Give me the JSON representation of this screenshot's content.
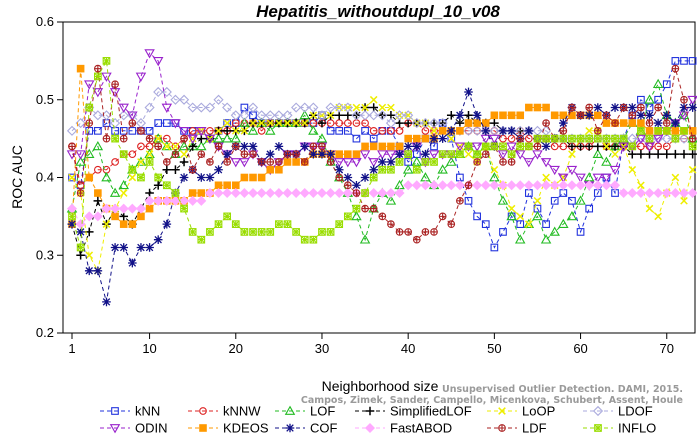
{
  "chart_data": {
    "type": "line",
    "title": "Hepatitis_withoutdupl_10_v08",
    "xlabel": "Neighborhood size",
    "ylabel": "ROC AUC",
    "xlim": [
      1,
      73
    ],
    "ylim": [
      0.2,
      0.6
    ],
    "xticks": [
      1,
      10,
      20,
      30,
      40,
      50,
      60,
      70
    ],
    "yticks": [
      0.2,
      0.3,
      0.4,
      0.5,
      0.6
    ],
    "grid": false,
    "legend_position": "bottom",
    "credit": [
      "Campos, Zimek, Sander, Campello, Micenkova, Schubert, Assent, Houle",
      "Unsupervised Outlier Detection. DAMI, 2015."
    ],
    "series": [
      {
        "name": "kNN",
        "color": "#2233dd",
        "marker": "square",
        "values": [
          0.4,
          0.39,
          0.46,
          0.46,
          0.47,
          0.46,
          0.46,
          0.46,
          0.46,
          0.46,
          0.47,
          0.47,
          0.47,
          0.46,
          0.46,
          0.46,
          0.45,
          0.46,
          0.47,
          0.47,
          0.49,
          0.48,
          0.47,
          0.47,
          0.47,
          0.47,
          0.47,
          0.47,
          0.47,
          0.48,
          0.46,
          0.46,
          0.46,
          0.45,
          0.46,
          0.45,
          0.46,
          0.46,
          0.44,
          0.42,
          0.43,
          0.45,
          0.44,
          0.47,
          0.45,
          0.4,
          0.37,
          0.35,
          0.34,
          0.31,
          0.33,
          0.35,
          0.34,
          0.38,
          0.36,
          0.34,
          0.37,
          0.38,
          0.37,
          0.33,
          0.36,
          0.38,
          0.4,
          0.38,
          0.45,
          0.48,
          0.5,
          0.49,
          0.5,
          0.52,
          0.55,
          0.55,
          0.55
        ]
      },
      {
        "name": "kNNW",
        "color": "#dd2222",
        "marker": "circle",
        "values": [
          0.44,
          0.39,
          0.4,
          0.41,
          0.41,
          0.42,
          0.43,
          0.43,
          0.44,
          0.44,
          0.45,
          0.45,
          0.44,
          0.45,
          0.46,
          0.46,
          0.46,
          0.46,
          0.46,
          0.47,
          0.47,
          0.47,
          0.46,
          0.47,
          0.47,
          0.47,
          0.47,
          0.47,
          0.47,
          0.47,
          0.47,
          0.47,
          0.47,
          0.47,
          0.47,
          0.46,
          0.46,
          0.46,
          0.46,
          0.47,
          0.47,
          0.46,
          0.46,
          0.46,
          0.46,
          0.46,
          0.46,
          0.46,
          0.46,
          0.46,
          0.45,
          0.45,
          0.46,
          0.45,
          0.45,
          0.45,
          0.44,
          0.44,
          0.44,
          0.44,
          0.44,
          0.45,
          0.44,
          0.44,
          0.44,
          0.44,
          0.44,
          0.44,
          0.44,
          0.44,
          0.45,
          0.45,
          0.45
        ]
      },
      {
        "name": "LOF",
        "color": "#22bb22",
        "marker": "triangle-up",
        "values": [
          0.36,
          0.42,
          0.43,
          0.44,
          0.4,
          0.38,
          0.39,
          0.41,
          0.42,
          0.43,
          0.45,
          0.44,
          0.43,
          0.44,
          0.44,
          0.44,
          0.45,
          0.45,
          0.45,
          0.45,
          0.47,
          0.46,
          0.47,
          0.46,
          0.47,
          0.47,
          0.47,
          0.48,
          0.46,
          0.45,
          0.42,
          0.4,
          0.38,
          0.35,
          0.32,
          0.36,
          0.38,
          0.37,
          0.39,
          0.41,
          0.42,
          0.4,
          0.39,
          0.41,
          0.42,
          0.43,
          0.44,
          0.43,
          0.44,
          0.4,
          0.37,
          0.35,
          0.32,
          0.34,
          0.35,
          0.32,
          0.33,
          0.34,
          0.35,
          0.37,
          0.4,
          0.43,
          0.42,
          0.44,
          0.45,
          0.47,
          0.46,
          0.5,
          0.52,
          0.48,
          0.47,
          0.48,
          0.45
        ]
      },
      {
        "name": "SimplifiedLOF",
        "color": "#000000",
        "marker": "plus",
        "values": [
          0.34,
          0.3,
          0.33,
          0.37,
          0.34,
          0.36,
          0.35,
          0.34,
          0.36,
          0.38,
          0.39,
          0.41,
          0.41,
          0.42,
          0.44,
          0.45,
          0.45,
          0.46,
          0.46,
          0.46,
          0.46,
          0.47,
          0.47,
          0.47,
          0.47,
          0.47,
          0.47,
          0.47,
          0.48,
          0.47,
          0.48,
          0.48,
          0.48,
          0.48,
          0.49,
          0.49,
          0.48,
          0.48,
          0.47,
          0.47,
          0.47,
          0.47,
          0.47,
          0.47,
          0.48,
          0.47,
          0.48,
          0.47,
          0.47,
          0.47,
          0.46,
          0.46,
          0.46,
          0.46,
          0.45,
          0.45,
          0.45,
          0.45,
          0.44,
          0.44,
          0.44,
          0.44,
          0.44,
          0.44,
          0.44,
          0.43,
          0.43,
          0.43,
          0.43,
          0.43,
          0.43,
          0.43,
          0.43
        ]
      },
      {
        "name": "LoOP",
        "color": "#eeee00",
        "marker": "x",
        "values": [
          0.4,
          0.38,
          0.3,
          0.28,
          0.34,
          0.36,
          0.38,
          0.4,
          0.42,
          0.43,
          0.45,
          0.44,
          0.44,
          0.43,
          0.45,
          0.46,
          0.45,
          0.46,
          0.47,
          0.46,
          0.46,
          0.47,
          0.47,
          0.47,
          0.47,
          0.47,
          0.47,
          0.47,
          0.48,
          0.48,
          0.48,
          0.49,
          0.49,
          0.49,
          0.49,
          0.5,
          0.49,
          0.49,
          0.48,
          0.48,
          0.47,
          0.47,
          0.46,
          0.46,
          0.45,
          0.44,
          0.43,
          0.42,
          0.44,
          0.41,
          0.39,
          0.36,
          0.35,
          0.34,
          0.37,
          0.4,
          0.39,
          0.4,
          0.43,
          0.45,
          0.46,
          0.46,
          0.44,
          0.43,
          0.44,
          0.41,
          0.39,
          0.36,
          0.35,
          0.38,
          0.4,
          0.37,
          0.41
        ]
      },
      {
        "name": "LDOF",
        "color": "#aaaadd",
        "marker": "diamond",
        "values": [
          0.46,
          0.47,
          0.49,
          0.48,
          0.48,
          0.47,
          0.48,
          0.48,
          0.47,
          0.49,
          0.51,
          0.51,
          0.5,
          0.5,
          0.49,
          0.49,
          0.49,
          0.5,
          0.49,
          0.48,
          0.48,
          0.49,
          0.48,
          0.48,
          0.48,
          0.48,
          0.49,
          0.49,
          0.49,
          0.48,
          0.49,
          0.49,
          0.49,
          0.48,
          0.48,
          0.48,
          0.48,
          0.47,
          0.48,
          0.48,
          0.47,
          0.47,
          0.47,
          0.47,
          0.46,
          0.46,
          0.46,
          0.46,
          0.46,
          0.46,
          0.46,
          0.46,
          0.46,
          0.46,
          0.46,
          0.46,
          0.45,
          0.45,
          0.45,
          0.45,
          0.45,
          0.45,
          0.45,
          0.45,
          0.45,
          0.45,
          0.45,
          0.45,
          0.45,
          0.45,
          0.45,
          0.45,
          0.45
        ]
      },
      {
        "name": "ODIN",
        "color": "#9922cc",
        "marker": "triangle-down",
        "values": [
          0.43,
          0.43,
          0.52,
          0.51,
          0.53,
          0.51,
          0.49,
          0.48,
          0.53,
          0.56,
          0.55,
          0.49,
          0.47,
          0.46,
          0.45,
          0.46,
          0.45,
          0.44,
          0.43,
          0.42,
          0.42,
          0.43,
          0.42,
          0.41,
          0.42,
          0.43,
          0.43,
          0.44,
          0.44,
          0.44,
          0.43,
          0.42,
          0.42,
          0.42,
          0.43,
          0.42,
          0.43,
          0.43,
          0.43,
          0.43,
          0.44,
          0.42,
          0.43,
          0.43,
          0.43,
          0.44,
          0.44,
          0.44,
          0.45,
          0.45,
          0.43,
          0.44,
          0.43,
          0.42,
          0.43,
          0.42,
          0.41,
          0.4,
          0.41,
          0.4,
          0.39,
          0.4,
          0.4,
          0.41,
          0.44,
          0.44,
          0.45,
          0.44,
          0.45,
          0.46,
          0.47,
          0.48,
          0.5
        ]
      },
      {
        "name": "KDEOS",
        "color": "#ff9900",
        "marker": "square-filled",
        "values": [
          0.34,
          0.54,
          0.4,
          0.38,
          0.36,
          0.35,
          0.34,
          0.34,
          0.35,
          0.36,
          0.37,
          0.37,
          0.37,
          0.37,
          0.38,
          0.38,
          0.38,
          0.39,
          0.39,
          0.39,
          0.4,
          0.4,
          0.4,
          0.41,
          0.41,
          0.42,
          0.42,
          0.42,
          0.43,
          0.43,
          0.43,
          0.43,
          0.43,
          0.43,
          0.44,
          0.44,
          0.44,
          0.44,
          0.44,
          0.45,
          0.45,
          0.45,
          0.45,
          0.46,
          0.46,
          0.46,
          0.47,
          0.47,
          0.47,
          0.48,
          0.48,
          0.48,
          0.48,
          0.49,
          0.49,
          0.49,
          0.48,
          0.48,
          0.48,
          0.48,
          0.48,
          0.48,
          0.47,
          0.47,
          0.47,
          0.47,
          0.47,
          0.46,
          0.46,
          0.46,
          0.46,
          0.46,
          0.46
        ]
      },
      {
        "name": "COF",
        "color": "#111188",
        "marker": "star",
        "values": [
          0.34,
          0.33,
          0.28,
          0.28,
          0.24,
          0.31,
          0.31,
          0.29,
          0.31,
          0.31,
          0.32,
          0.34,
          0.38,
          0.4,
          0.41,
          0.4,
          0.4,
          0.41,
          0.43,
          0.44,
          0.44,
          0.44,
          0.42,
          0.43,
          0.44,
          0.43,
          0.43,
          0.44,
          0.43,
          0.43,
          0.43,
          0.41,
          0.4,
          0.39,
          0.4,
          0.41,
          0.42,
          0.42,
          0.43,
          0.44,
          0.44,
          0.43,
          0.45,
          0.45,
          0.46,
          0.48,
          0.51,
          0.48,
          0.46,
          0.44,
          0.46,
          0.46,
          0.45,
          0.46,
          0.45,
          0.44,
          0.45,
          0.47,
          0.49,
          0.48,
          0.48,
          0.49,
          0.48,
          0.49,
          0.49,
          0.49,
          0.48,
          0.48,
          0.47,
          0.48,
          0.47,
          0.49,
          0.49
        ]
      },
      {
        "name": "FastABOD",
        "color": "#ffaaff",
        "marker": "diamond-filled",
        "values": [
          0.36,
          0.34,
          0.35,
          0.35,
          0.36,
          0.36,
          0.36,
          0.36,
          0.36,
          0.37,
          0.37,
          0.37,
          0.37,
          0.37,
          0.37,
          0.37,
          0.38,
          0.38,
          0.38,
          0.38,
          0.38,
          0.38,
          0.38,
          0.38,
          0.38,
          0.38,
          0.38,
          0.38,
          0.38,
          0.38,
          0.38,
          0.38,
          0.38,
          0.38,
          0.38,
          0.38,
          0.38,
          0.38,
          0.38,
          0.39,
          0.39,
          0.39,
          0.39,
          0.39,
          0.39,
          0.39,
          0.39,
          0.39,
          0.39,
          0.39,
          0.39,
          0.39,
          0.39,
          0.39,
          0.39,
          0.39,
          0.39,
          0.39,
          0.39,
          0.39,
          0.39,
          0.39,
          0.39,
          0.39,
          0.38,
          0.38,
          0.38,
          0.38,
          0.38,
          0.38,
          0.38,
          0.38,
          0.38
        ]
      },
      {
        "name": "LDF",
        "color": "#aa2222",
        "marker": "circle-plus",
        "values": [
          0.44,
          0.38,
          0.47,
          0.54,
          0.45,
          0.52,
          0.45,
          0.47,
          0.46,
          0.45,
          0.44,
          0.42,
          0.43,
          0.45,
          0.41,
          0.43,
          0.42,
          0.44,
          0.42,
          0.44,
          0.43,
          0.43,
          0.42,
          0.42,
          0.42,
          0.43,
          0.43,
          0.42,
          0.44,
          0.44,
          0.42,
          0.4,
          0.39,
          0.38,
          0.36,
          0.36,
          0.35,
          0.34,
          0.33,
          0.33,
          0.32,
          0.33,
          0.33,
          0.35,
          0.34,
          0.37,
          0.39,
          0.42,
          0.43,
          0.44,
          0.42,
          0.42,
          0.45,
          0.44,
          0.44,
          0.47,
          0.45,
          0.46,
          0.49,
          0.48,
          0.49,
          0.46,
          0.48,
          0.47,
          0.49,
          0.48,
          0.49,
          0.47,
          0.49,
          0.47,
          0.54,
          0.5,
          0.45
        ]
      },
      {
        "name": "INFLO",
        "color": "#99dd00",
        "marker": "star-box",
        "values": [
          0.35,
          0.31,
          0.49,
          0.53,
          0.55,
          0.45,
          0.43,
          0.41,
          0.4,
          0.42,
          0.4,
          0.39,
          0.38,
          0.36,
          0.33,
          0.32,
          0.33,
          0.34,
          0.35,
          0.34,
          0.33,
          0.33,
          0.33,
          0.33,
          0.34,
          0.34,
          0.33,
          0.32,
          0.32,
          0.33,
          0.33,
          0.34,
          0.35,
          0.36,
          0.38,
          0.4,
          0.41,
          0.41,
          0.42,
          0.43,
          0.41,
          0.42,
          0.42,
          0.43,
          0.43,
          0.43,
          0.44,
          0.43,
          0.44,
          0.44,
          0.44,
          0.43,
          0.44,
          0.44,
          0.45,
          0.45,
          0.45,
          0.45,
          0.45,
          0.45,
          0.45,
          0.45,
          0.45,
          0.45,
          0.45,
          0.44,
          0.46,
          0.45,
          0.46,
          0.46,
          0.45,
          0.46,
          0.44
        ]
      }
    ],
    "legend_rows": [
      [
        "kNN",
        "kNNW",
        "LOF",
        "SimplifiedLOF",
        "LoOP",
        "LDOF"
      ],
      [
        "ODIN",
        "KDEOS",
        "COF",
        "FastABOD",
        "LDF",
        "INFLO"
      ]
    ]
  }
}
